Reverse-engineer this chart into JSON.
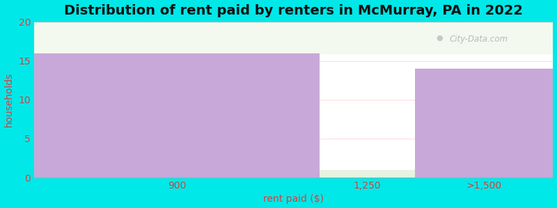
{
  "title": "Distribution of rent paid by renters in McMurray, PA in 2022",
  "categories": [
    "900",
    "1,250",
    ">1,500"
  ],
  "values": [
    16,
    1,
    14
  ],
  "bar_colors": [
    "#c8a8d8",
    "#e8f2e0",
    "#c8a8d8"
  ],
  "ylim": [
    0,
    20
  ],
  "yticks": [
    0,
    5,
    10,
    15,
    20
  ],
  "ylabel": "households",
  "xlabel": "rent paid ($)",
  "background_outer": "#00e8e8",
  "background_inner": "#ffffff",
  "title_fontsize": 14,
  "label_fontsize": 10,
  "tick_color": "#cc4444",
  "label_color": "#cc4444",
  "title_color": "#111111",
  "watermark": "City-Data.com",
  "bar_edges": [
    0.0,
    0.55,
    0.73,
    1.0
  ]
}
